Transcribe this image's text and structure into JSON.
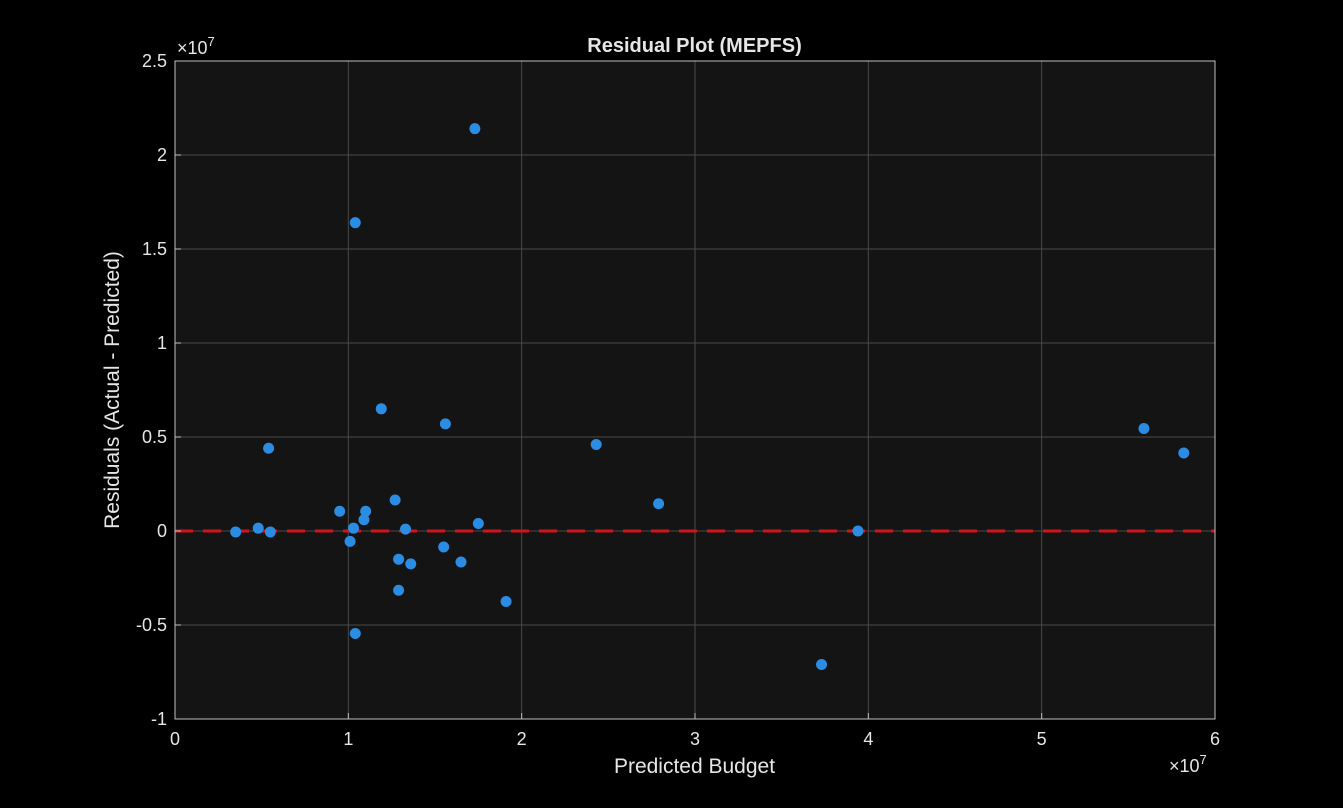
{
  "chart_data": {
    "type": "scatter",
    "title": "Residual Plot (MEPFS)",
    "xlabel": "Predicted Budget",
    "ylabel": "Residuals (Actual - Predicted)",
    "x_exponent": "×10",
    "x_exponent_power": "7",
    "y_exponent": "×10",
    "y_exponent_power": "7",
    "xlim": [
      0,
      6
    ],
    "ylim": [
      -1,
      2.5
    ],
    "xticks": [
      0,
      1,
      2,
      3,
      4,
      5,
      6
    ],
    "xtick_labels": [
      "0",
      "1",
      "2",
      "3",
      "4",
      "5",
      "6"
    ],
    "yticks": [
      -1,
      -0.5,
      0,
      0.5,
      1,
      1.5,
      2,
      2.5
    ],
    "ytick_labels": [
      "-1",
      "-0.5",
      "0",
      "0.5",
      "1",
      "1.5",
      "2",
      "2.5"
    ],
    "grid": true,
    "marker_color": "#2b8ce3",
    "reference_line": {
      "y": 0,
      "style": "dashed",
      "color": "#d0141c"
    },
    "points": [
      {
        "x": 0.35,
        "y": -0.005
      },
      {
        "x": 0.48,
        "y": 0.015
      },
      {
        "x": 0.54,
        "y": 0.44
      },
      {
        "x": 0.55,
        "y": -0.005
      },
      {
        "x": 0.95,
        "y": 0.105
      },
      {
        "x": 1.01,
        "y": -0.055
      },
      {
        "x": 1.03,
        "y": 0.015
      },
      {
        "x": 1.04,
        "y": 1.64
      },
      {
        "x": 1.04,
        "y": -0.545
      },
      {
        "x": 1.09,
        "y": 0.06
      },
      {
        "x": 1.1,
        "y": 0.105
      },
      {
        "x": 1.19,
        "y": 0.65
      },
      {
        "x": 1.27,
        "y": 0.165
      },
      {
        "x": 1.29,
        "y": -0.15
      },
      {
        "x": 1.29,
        "y": -0.315
      },
      {
        "x": 1.33,
        "y": 0.01
      },
      {
        "x": 1.36,
        "y": -0.175
      },
      {
        "x": 1.55,
        "y": -0.085
      },
      {
        "x": 1.56,
        "y": 0.57
      },
      {
        "x": 1.65,
        "y": -0.165
      },
      {
        "x": 1.73,
        "y": 2.14
      },
      {
        "x": 1.75,
        "y": 0.04
      },
      {
        "x": 1.91,
        "y": -0.375
      },
      {
        "x": 2.43,
        "y": 0.46
      },
      {
        "x": 2.79,
        "y": 0.145
      },
      {
        "x": 3.73,
        "y": -0.71
      },
      {
        "x": 3.94,
        "y": 0.0
      },
      {
        "x": 5.59,
        "y": 0.545
      },
      {
        "x": 5.82,
        "y": 0.415
      }
    ]
  }
}
